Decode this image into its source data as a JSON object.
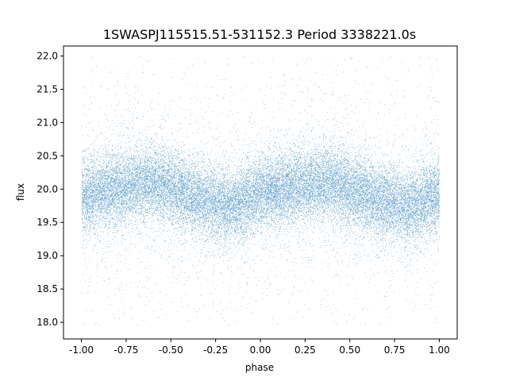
{
  "chart_data": {
    "type": "scatter",
    "title": "1SWASPJ115515.51-531152.3 Period 3338221.0s",
    "xlabel": "phase",
    "ylabel": "flux",
    "xlim": [
      -1.1,
      1.1
    ],
    "ylim": [
      17.75,
      22.15
    ],
    "xticks": [
      "-1.00",
      "-0.75",
      "-0.50",
      "-0.25",
      "0.00",
      "0.25",
      "0.50",
      "0.75",
      "1.00"
    ],
    "yticks": [
      "18.0",
      "18.5",
      "19.0",
      "19.5",
      "20.0",
      "20.5",
      "21.0",
      "21.5",
      "22.0"
    ],
    "grid": false,
    "point_color": "#1f77b4",
    "n_points": 30000,
    "phase_range": [
      -1.0,
      1.0
    ],
    "flux_range": [
      17.95,
      22.0
    ],
    "series": [
      {
        "trend_x": [
          -1.0,
          -0.75,
          -0.6,
          -0.5,
          -0.35,
          -0.2,
          -0.1,
          0.0,
          0.1,
          0.25,
          0.4,
          0.5,
          0.65,
          0.8,
          0.9,
          1.0
        ],
        "trend_y": [
          19.9,
          20.05,
          20.1,
          20.0,
          19.85,
          19.75,
          19.8,
          19.95,
          20.0,
          20.05,
          20.1,
          20.0,
          19.85,
          19.75,
          19.8,
          19.95
        ]
      }
    ]
  }
}
